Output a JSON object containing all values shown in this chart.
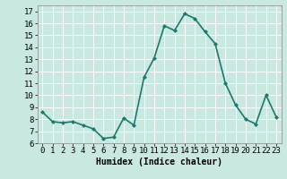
{
  "x": [
    0,
    1,
    2,
    3,
    4,
    5,
    6,
    7,
    8,
    9,
    10,
    11,
    12,
    13,
    14,
    15,
    16,
    17,
    18,
    19,
    20,
    21,
    22,
    23
  ],
  "y": [
    8.6,
    7.8,
    7.7,
    7.8,
    7.5,
    7.2,
    6.4,
    6.5,
    8.1,
    7.5,
    11.5,
    13.1,
    15.8,
    15.4,
    16.8,
    16.4,
    15.3,
    14.3,
    11.0,
    9.2,
    8.0,
    7.6,
    10.0,
    8.2
  ],
  "line_color": "#1a7a6e",
  "marker": "D",
  "marker_size": 2.0,
  "linewidth": 1.2,
  "xlabel": "Humidex (Indice chaleur)",
  "xlabel_fontsize": 7,
  "ylim": [
    6,
    17.5
  ],
  "yticks": [
    6,
    7,
    8,
    9,
    10,
    11,
    12,
    13,
    14,
    15,
    16,
    17
  ],
  "xlim": [
    -0.5,
    23.5
  ],
  "xticks": [
    0,
    1,
    2,
    3,
    4,
    5,
    6,
    7,
    8,
    9,
    10,
    11,
    12,
    13,
    14,
    15,
    16,
    17,
    18,
    19,
    20,
    21,
    22,
    23
  ],
  "background_color": "#c8e8e0",
  "grid_color": "#ffffff",
  "grid_linewidth": 0.7,
  "tick_fontsize": 6.5
}
